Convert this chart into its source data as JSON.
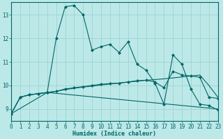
{
  "xlabel": "Humidex (Indice chaleur)",
  "xlim": [
    0,
    23
  ],
  "ylim": [
    8.5,
    13.55
  ],
  "yticks": [
    9,
    10,
    11,
    12,
    13
  ],
  "xticks": [
    0,
    1,
    2,
    3,
    4,
    5,
    6,
    7,
    8,
    9,
    10,
    11,
    12,
    13,
    14,
    15,
    16,
    17,
    18,
    19,
    20,
    21,
    22,
    23
  ],
  "bg_color": "#bde8e8",
  "line_color": "#006666",
  "grid_color": "#96d0d0",
  "line1_x": [
    0,
    1,
    2,
    3,
    4,
    5,
    6,
    7,
    8,
    9,
    10,
    11,
    12,
    13,
    14,
    15,
    16,
    17,
    18,
    19,
    20,
    21,
    22,
    23
  ],
  "line1_y": [
    8.8,
    9.5,
    9.6,
    9.65,
    9.7,
    12.0,
    13.35,
    13.4,
    13.0,
    11.5,
    11.65,
    11.75,
    11.4,
    11.85,
    10.9,
    10.65,
    10.1,
    9.2,
    11.3,
    10.9,
    9.85,
    9.2,
    9.15,
    8.95
  ],
  "line2_x": [
    0,
    1,
    2,
    3,
    4,
    5,
    6,
    7,
    8,
    9,
    10,
    11,
    12,
    13,
    14,
    15,
    16,
    17,
    18,
    19,
    20,
    21,
    22,
    23
  ],
  "line2_y": [
    8.8,
    9.5,
    9.6,
    9.65,
    9.7,
    9.75,
    9.85,
    9.9,
    9.95,
    10.0,
    10.05,
    10.08,
    10.1,
    10.15,
    10.2,
    10.22,
    10.15,
    9.9,
    10.6,
    10.45,
    10.4,
    10.35,
    9.5,
    9.45
  ],
  "line3_x": [
    0,
    1,
    2,
    3,
    4,
    5,
    6,
    7,
    8,
    9,
    10,
    11,
    12,
    13,
    14,
    15,
    16,
    17,
    18,
    19,
    20,
    21,
    22,
    23
  ],
  "line3_y": [
    8.8,
    9.5,
    9.6,
    9.65,
    9.7,
    9.75,
    9.82,
    9.88,
    9.93,
    9.97,
    10.02,
    10.06,
    10.1,
    10.14,
    10.18,
    10.22,
    10.25,
    10.28,
    10.32,
    10.36,
    10.4,
    10.44,
    10.0,
    9.5
  ],
  "line4_x": [
    0,
    4,
    23
  ],
  "line4_y": [
    8.8,
    9.7,
    9.0
  ],
  "markersize": 2.5,
  "xlabel_fontsize": 6.0,
  "tick_fontsize": 5.5
}
